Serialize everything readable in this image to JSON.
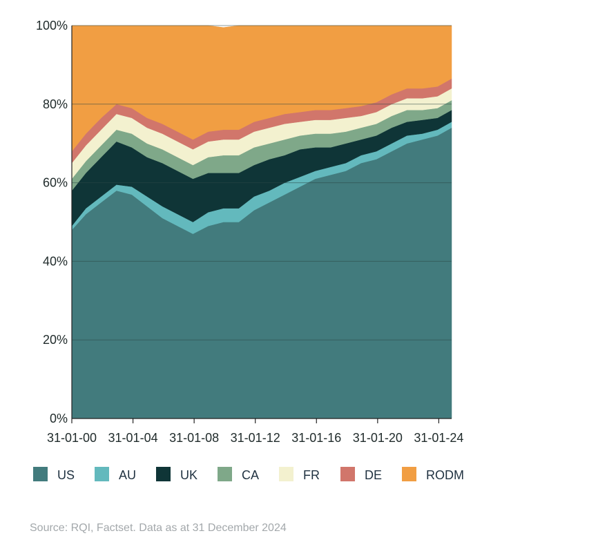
{
  "chart_data": {
    "type": "area",
    "stacked": true,
    "title": "",
    "xlabel": "",
    "ylabel": "",
    "ylim": [
      0,
      100
    ],
    "yticks": [
      0,
      20,
      40,
      60,
      80,
      100
    ],
    "ytick_labels": [
      "0%",
      "20%",
      "40%",
      "60%",
      "80%",
      "100%"
    ],
    "xlim": [
      2000.08,
      2024.92
    ],
    "xticks": [
      2000.08,
      2004.08,
      2008.08,
      2012.08,
      2016.08,
      2020.08,
      2024.08
    ],
    "xtick_labels": [
      "31-01-00",
      "31-01-04",
      "31-01-08",
      "31-01-12",
      "31-01-16",
      "31-01-20",
      "31-01-24"
    ],
    "grid": "horizontal",
    "legend_position": "bottom",
    "x": [
      2000.08,
      2001,
      2002,
      2003,
      2004,
      2005,
      2006,
      2007,
      2008,
      2009,
      2010,
      2011,
      2012,
      2013,
      2014,
      2015,
      2016,
      2017,
      2018,
      2019,
      2020,
      2021,
      2022,
      2023,
      2024,
      2024.92
    ],
    "series": [
      {
        "name": "US",
        "color": "#427b7d",
        "values": [
          48,
          52,
          55,
          58,
          57,
          54,
          51,
          49,
          47,
          49,
          50,
          50,
          53,
          55,
          57,
          59,
          61,
          62,
          63,
          65,
          66,
          68,
          70,
          71,
          72,
          74
        ]
      },
      {
        "name": "AU",
        "color": "#63b9bd",
        "values": [
          1,
          1.5,
          1.5,
          1.5,
          2,
          2.5,
          3,
          3,
          3,
          3.5,
          3.5,
          3.5,
          3.5,
          3,
          3,
          2.5,
          2,
          2,
          2,
          2,
          2,
          2,
          2,
          1.5,
          1.5,
          1.5
        ]
      },
      {
        "name": "UK",
        "color": "#0f3537",
        "values": [
          9,
          9,
          10,
          11,
          10,
          10,
          11,
          11,
          11,
          10,
          9,
          9,
          8,
          8,
          7,
          7,
          6,
          5,
          5,
          4,
          4,
          4,
          3.5,
          3.5,
          3,
          3
        ]
      },
      {
        "name": "CA",
        "color": "#7fa889",
        "values": [
          3,
          3,
          3,
          3,
          3.5,
          3.5,
          3.5,
          3.5,
          3.5,
          4,
          4.5,
          4.5,
          4.5,
          4,
          4,
          3.5,
          3.5,
          3.5,
          3,
          3,
          3,
          3,
          3,
          2.5,
          2.5,
          2.5
        ]
      },
      {
        "name": "FR",
        "color": "#f3f1cf",
        "values": [
          4,
          4,
          4,
          4,
          4,
          4,
          4,
          4,
          4,
          4,
          4,
          4,
          4,
          4,
          4,
          3.5,
          3.5,
          3.5,
          3.5,
          3,
          3,
          3,
          3,
          3,
          3,
          3
        ]
      },
      {
        "name": "DE",
        "color": "#d1766b",
        "values": [
          3,
          3,
          3,
          2.5,
          2.5,
          2.5,
          2.5,
          2.5,
          2.5,
          2.5,
          2.5,
          2.5,
          2.5,
          2.5,
          2.5,
          2.5,
          2.5,
          2.5,
          2.5,
          2.5,
          2.5,
          2.5,
          2.5,
          2.5,
          2.5,
          2.5
        ]
      },
      {
        "name": "RODM",
        "color": "#f19e43",
        "values": [
          32,
          27.5,
          23.5,
          20,
          21,
          23.5,
          25,
          27,
          29,
          27,
          26,
          26.5,
          24.5,
          23.5,
          22.5,
          22,
          21.5,
          21.5,
          21,
          20.5,
          19.5,
          17.5,
          16,
          16,
          15.5,
          13.5
        ]
      }
    ]
  },
  "source_note": "Source: RQI, Factset. Data as at 31 December 2024"
}
